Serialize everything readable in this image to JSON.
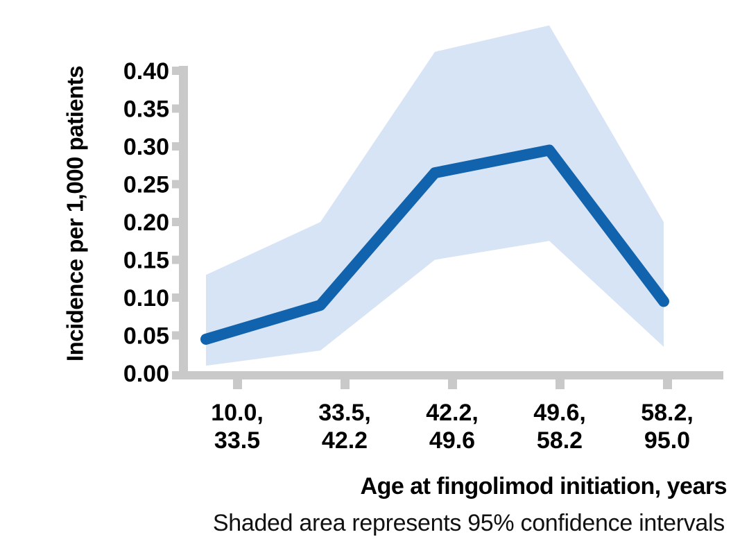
{
  "chart_data": {
    "type": "line",
    "title": "",
    "xlabel": "Age at fingolimod initiation, years",
    "ylabel": "Incidence per 1,000 patients",
    "caption": "Shaded area represents 95% confidence intervals",
    "categories": [
      [
        "10.0,",
        "33.5"
      ],
      [
        "33.5,",
        "42.2"
      ],
      [
        "42.2,",
        "49.6"
      ],
      [
        "49.6,",
        "58.2"
      ],
      [
        "58.2,",
        "95.0"
      ]
    ],
    "series": [
      {
        "name": "Incidence per 1,000 patients",
        "values": [
          0.045,
          0.09,
          0.265,
          0.295,
          0.095
        ]
      }
    ],
    "ci_lower": [
      0.01,
      0.03,
      0.15,
      0.175,
      0.035
    ],
    "ci_upper": [
      0.13,
      0.2,
      0.425,
      0.46,
      0.2
    ],
    "y_tick_labels": [
      "0.00",
      "0.05",
      "0.10",
      "0.15",
      "0.20",
      "0.25",
      "0.30",
      "0.35",
      "0.40"
    ],
    "y_tick_step": 0.05,
    "ylim": [
      0,
      0.46
    ],
    "grid": false,
    "legend": false,
    "band_meaning": "95% confidence intervals",
    "colors": {
      "line": "#1263ae",
      "band": "#d7e4f5",
      "axis": "#c9c9c9",
      "text": "#000000",
      "caption": "#111111"
    }
  }
}
